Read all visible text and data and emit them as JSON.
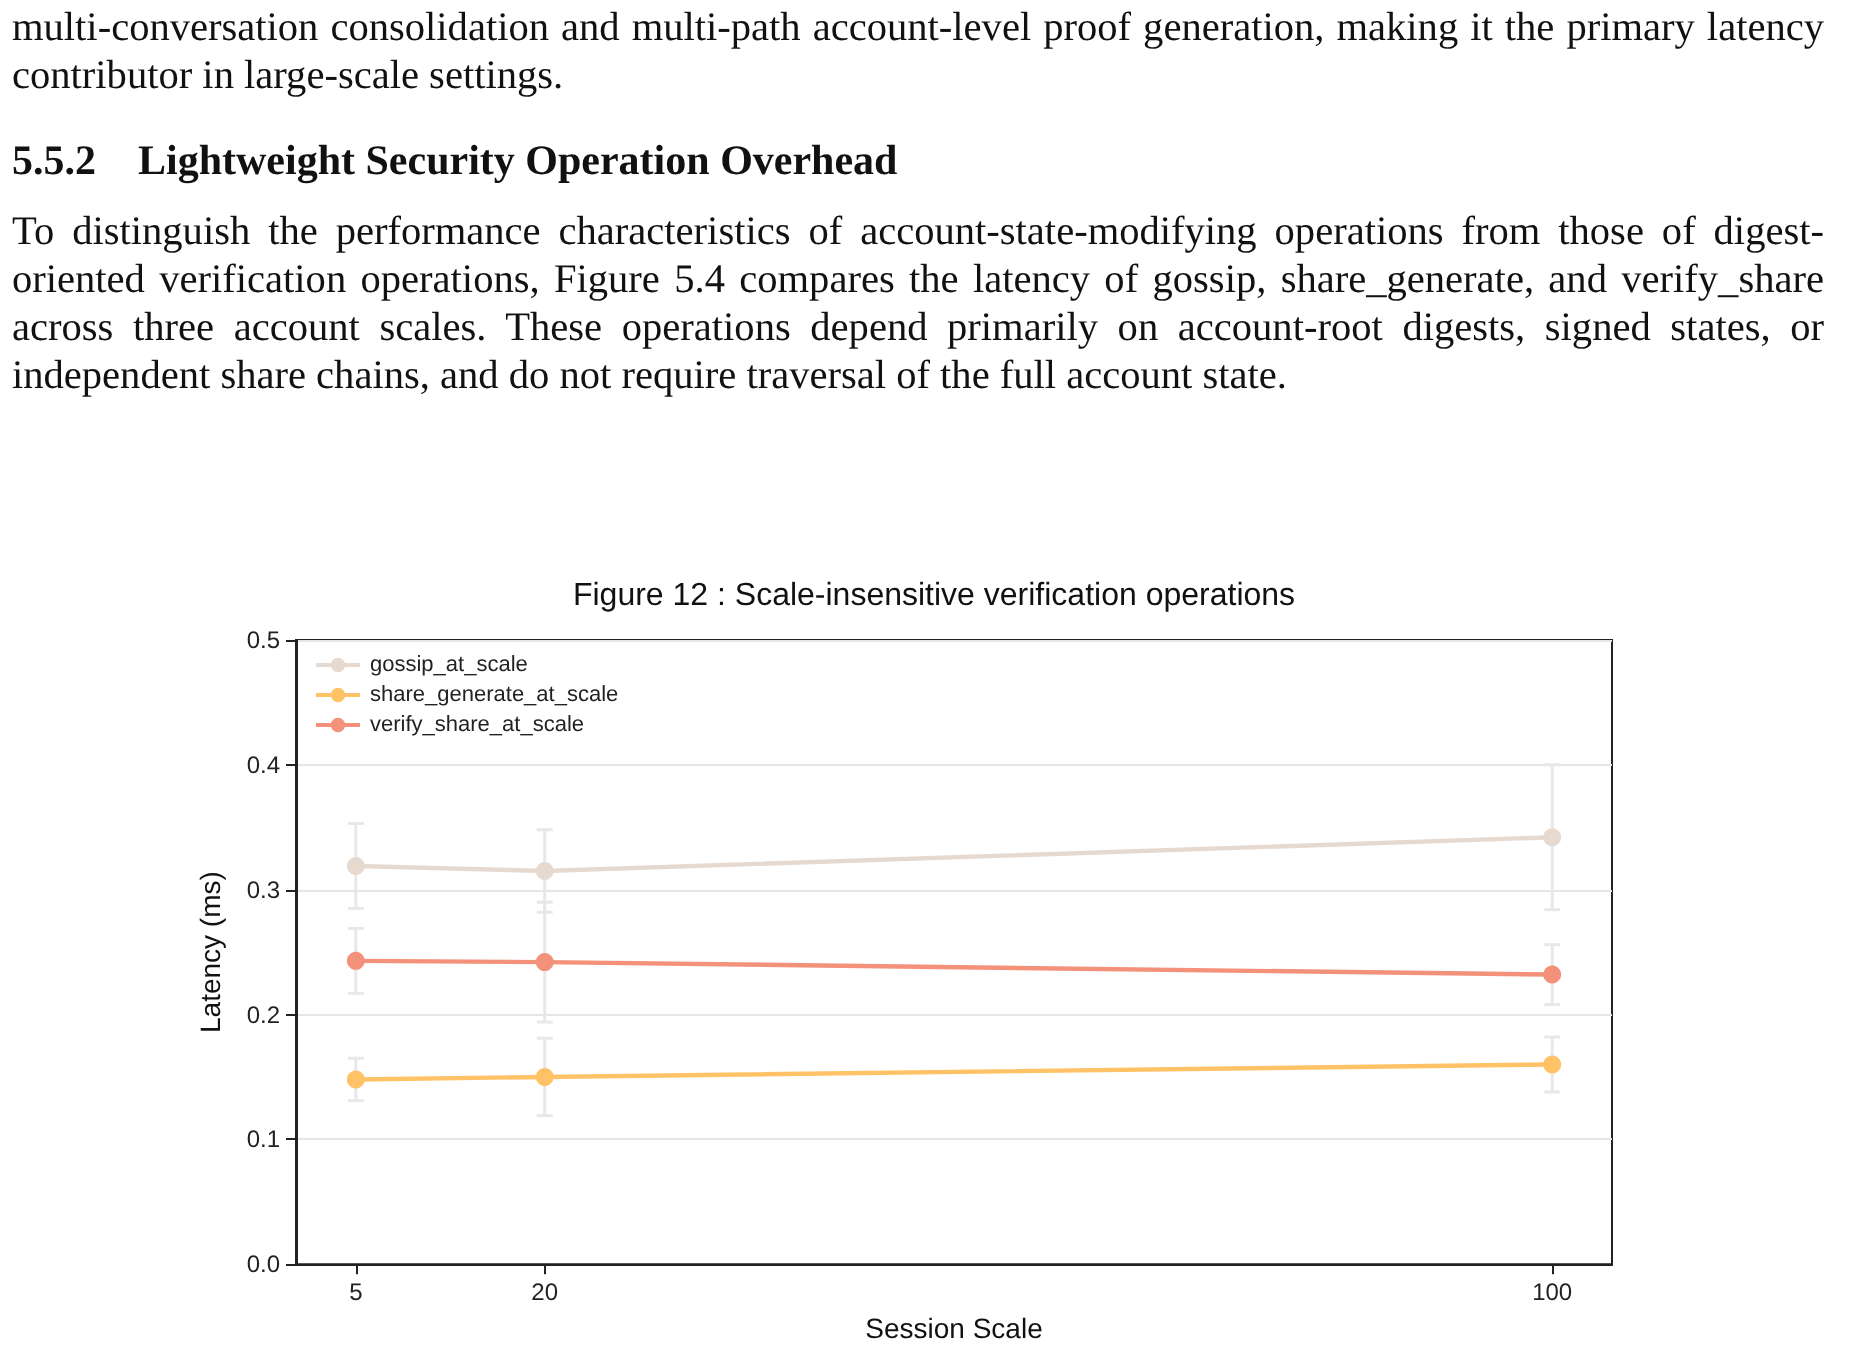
{
  "chart_data": {
    "type": "line",
    "title": "Figure 12 : Scale-insensitive verification operations",
    "annotations": [
      "multi-conversation consolidation and multi-path account-level proof generation, making it the primary latency contributor in large-scale settings.",
      "5.5.2    Lightweight Security Operation Overhead",
      "To distinguish the performance characteristics of account-state-modifying operations from those of digest-oriented verification operations, Figure 5.4 compares the latency of gossip, share_generate, and verify_share across three account scales.  These operations depend primarily on account-root digests, signed states, or independent share chains, and do not require traversal of the full account state."
    ],
    "xlabel": "Session Scale",
    "ylabel": "Latency (ms)",
    "x": [
      5,
      20,
      100
    ],
    "series": [
      {
        "name": "gossip_at_scale",
        "color": "#e6d9d0",
        "values": [
          0.319,
          0.315,
          0.342
        ],
        "errors": [
          0.034,
          0.033,
          0.058
        ]
      },
      {
        "name": "share_generate_at_scale",
        "color": "#ffc266",
        "values": [
          0.148,
          0.15,
          0.16
        ],
        "errors": [
          0.017,
          0.031,
          0.022
        ]
      },
      {
        "name": "verify_share_at_scale",
        "color": "#f4917a",
        "values": [
          0.243,
          0.242,
          0.232
        ],
        "errors": [
          0.026,
          0.048,
          0.024
        ]
      }
    ],
    "xlim": [
      0.25,
      104.75
    ],
    "xticks": [
      5,
      20,
      100
    ],
    "ylim": [
      0,
      0.5
    ],
    "yticks": [
      {
        "value": 0,
        "label": "0.0"
      },
      0.1,
      0.2,
      0.3,
      0.4,
      0.5
    ],
    "grid": "y",
    "legend": "top left",
    "marker": "circle",
    "line_style": "solid"
  }
}
